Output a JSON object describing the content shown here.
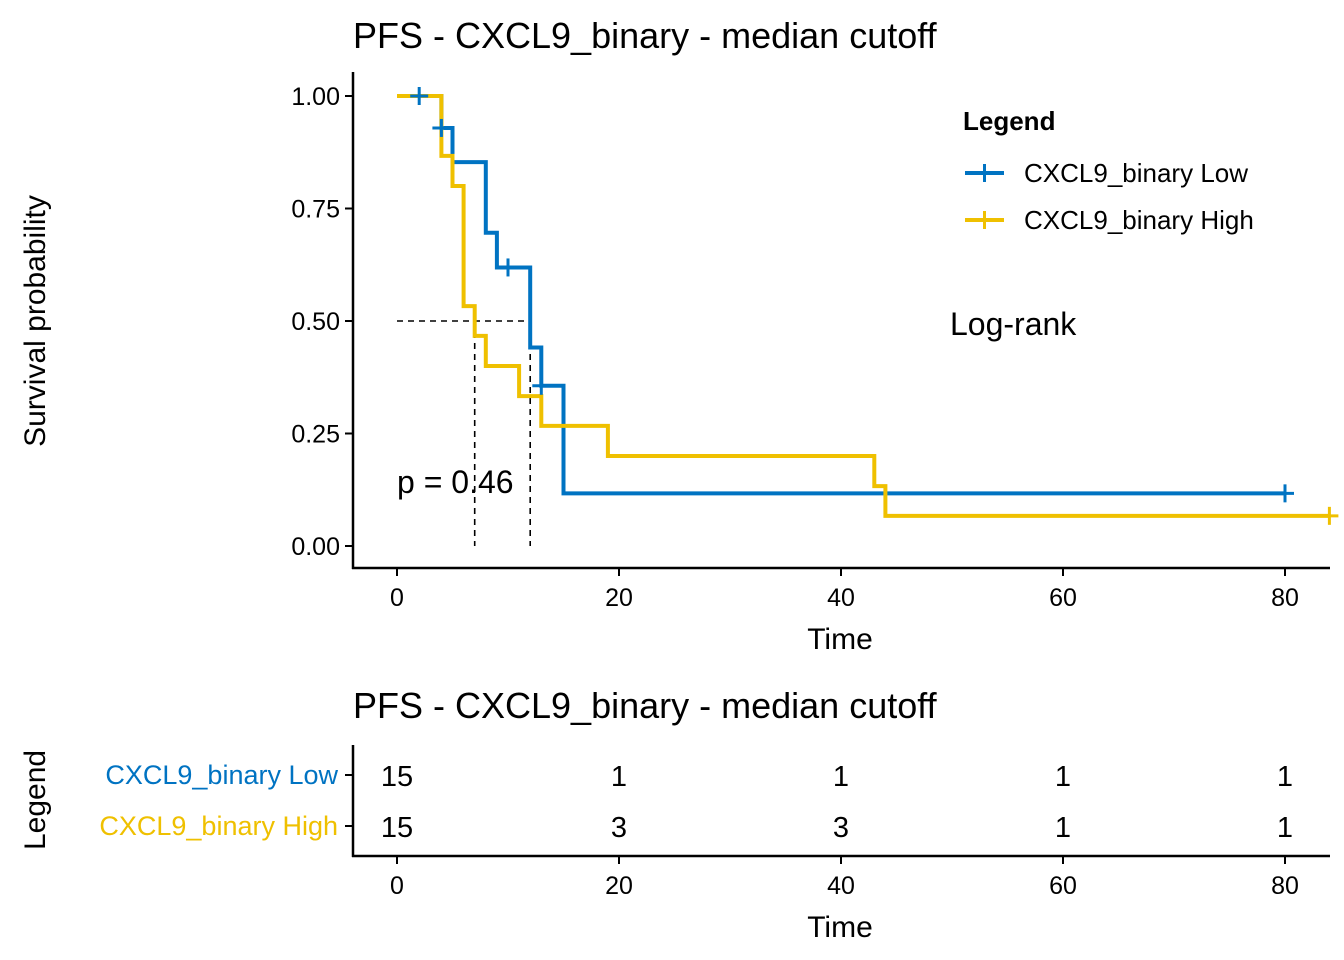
{
  "colors": {
    "low": "#0073C2",
    "high": "#EFC000",
    "axis": "#000000",
    "background": "#FFFFFF"
  },
  "chart_data": [
    {
      "type": "line",
      "subtype": "kaplan-meier",
      "title": "PFS - CXCL9_binary - median cutoff",
      "xlabel": "Time",
      "ylabel": "Survival probability",
      "xlim": [
        0,
        84
      ],
      "ylim": [
        0,
        1
      ],
      "xticks": [
        "0",
        "20",
        "40",
        "60",
        "80"
      ],
      "yticks": [
        "0.00",
        "0.25",
        "0.50",
        "0.75",
        "1.00"
      ],
      "grid": false,
      "legend": {
        "title": "Legend",
        "position": "top-right",
        "entries": [
          "CXCL9_binary Low",
          "CXCL9_binary High"
        ]
      },
      "annotations": {
        "test": "Log-rank",
        "pvalue": "p = 0.46"
      },
      "median_lines": [
        7,
        12
      ],
      "series": [
        {
          "name": "CXCL9_binary Low",
          "color": "#0073C2",
          "steps": [
            [
              0,
              1.0
            ],
            [
              4,
              0.929
            ],
            [
              5,
              0.853
            ],
            [
              8,
              0.696
            ],
            [
              9,
              0.619
            ],
            [
              12,
              0.441
            ],
            [
              13,
              0.356
            ],
            [
              15,
              0.117
            ]
          ],
          "end_time": 80,
          "censors": [
            [
              2,
              1.0
            ],
            [
              4,
              0.929
            ],
            [
              10,
              0.619
            ],
            [
              13,
              0.356
            ],
            [
              80,
              0.117
            ]
          ]
        },
        {
          "name": "CXCL9_binary High",
          "color": "#EFC000",
          "steps": [
            [
              0,
              1.0
            ],
            [
              4,
              0.867
            ],
            [
              5,
              0.8
            ],
            [
              6,
              0.533
            ],
            [
              7,
              0.467
            ],
            [
              8,
              0.4
            ],
            [
              11,
              0.333
            ],
            [
              13,
              0.267
            ],
            [
              19,
              0.2
            ],
            [
              43,
              0.133
            ],
            [
              44,
              0.067
            ]
          ],
          "end_time": 84,
          "censors": [
            [
              84,
              0.067
            ]
          ]
        }
      ]
    },
    {
      "type": "table",
      "title": "PFS - CXCL9_binary - median cutoff",
      "xlabel": "Time",
      "ylabel": "Legend",
      "xlim": [
        0,
        84
      ],
      "xticks": [
        "0",
        "20",
        "40",
        "60",
        "80"
      ],
      "x": [
        0,
        20,
        40,
        60,
        80
      ],
      "rows": [
        {
          "name": "CXCL9_binary Low",
          "color": "#0073C2",
          "values": [
            "15",
            "1",
            "1",
            "1",
            "1"
          ]
        },
        {
          "name": "CXCL9_binary High",
          "color": "#EFC000",
          "values": [
            "15",
            "3",
            "3",
            "1",
            "1"
          ]
        }
      ]
    }
  ]
}
